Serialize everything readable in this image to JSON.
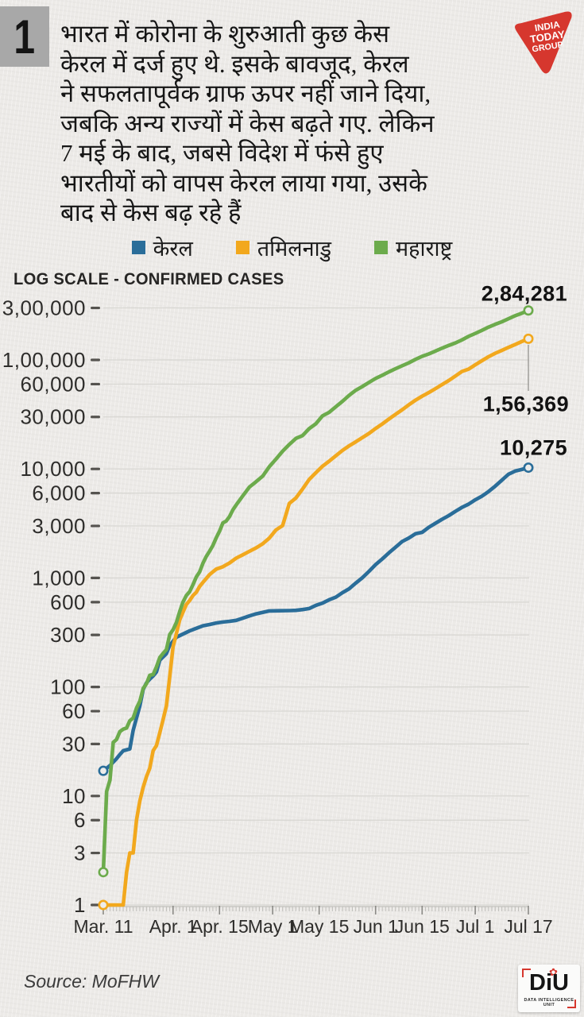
{
  "panel": {
    "number": "1"
  },
  "intro": {
    "lines": [
      "भारत में कोरोना के शुरुआती कुछ केस",
      "केरल में दर्ज हुए थे. इसके बावजूद, केरल",
      "ने सफलतापूर्वक ग्राफ ऊपर नहीं जाने दिया,",
      "जबकि अन्य राज्यों में केस बढ़ते गए. लेकिन",
      "7 मई के बाद, जबसे विदेश में फंसे हुए",
      "भारतीयों को वापस केरल लाया गया, उसके",
      "बाद से केस बढ़ रहे हैं"
    ]
  },
  "brand": {
    "logo_color": "#d6372e",
    "logo_line1": "INDIA",
    "logo_line2": "TODAY",
    "logo_line3": "GROUP"
  },
  "legend": {
    "items": [
      {
        "label": "केरल",
        "color": "#2a6d99"
      },
      {
        "label": "तमिलनाडु",
        "color": "#f2a81d"
      },
      {
        "label": "महाराष्ट्र",
        "color": "#6cab4c"
      }
    ]
  },
  "chart_data": {
    "type": "line",
    "title": "LOG SCALE - CONFIRMED CASES",
    "y_scale": "log",
    "ylim": [
      1,
      300000
    ],
    "grid": true,
    "legend_position": "top",
    "y_ticks": [
      {
        "value": 300000,
        "label": "3,00,000"
      },
      {
        "value": 100000,
        "label": "1,00,000"
      },
      {
        "value": 60000,
        "label": "60,000"
      },
      {
        "value": 30000,
        "label": "30,000"
      },
      {
        "value": 10000,
        "label": "10,000"
      },
      {
        "value": 6000,
        "label": "6,000"
      },
      {
        "value": 3000,
        "label": "3,000"
      },
      {
        "value": 1000,
        "label": "1,000"
      },
      {
        "value": 600,
        "label": "600"
      },
      {
        "value": 300,
        "label": "300"
      },
      {
        "value": 100,
        "label": "100"
      },
      {
        "value": 60,
        "label": "60"
      },
      {
        "value": 30,
        "label": "30"
      },
      {
        "value": 10,
        "label": "10"
      },
      {
        "value": 6,
        "label": "6"
      },
      {
        "value": 3,
        "label": "3"
      },
      {
        "value": 1,
        "label": "1"
      }
    ],
    "x_ticks": [
      {
        "day": 0,
        "label": "Mar. 11"
      },
      {
        "day": 21,
        "label": "Apr. 1"
      },
      {
        "day": 35,
        "label": "Apr. 15"
      },
      {
        "day": 51,
        "label": "May 1"
      },
      {
        "day": 65,
        "label": "May 15"
      },
      {
        "day": 82,
        "label": "Jun 1"
      },
      {
        "day": 96,
        "label": "Jun 15"
      },
      {
        "day": 112,
        "label": "Jul 1"
      },
      {
        "day": 128,
        "label": "Jul 17"
      }
    ],
    "series": [
      {
        "name": "केरल",
        "color": "#2a6d99",
        "end_label": "10,275",
        "points": [
          [
            0,
            17
          ],
          [
            2,
            19
          ],
          [
            4,
            22
          ],
          [
            5,
            24
          ],
          [
            6,
            26
          ],
          [
            8,
            27
          ],
          [
            9,
            40
          ],
          [
            10,
            52
          ],
          [
            11,
            67
          ],
          [
            12,
            95
          ],
          [
            13,
            109
          ],
          [
            14,
            118
          ],
          [
            15,
            126
          ],
          [
            16,
            137
          ],
          [
            17,
            176
          ],
          [
            19,
            202
          ],
          [
            20,
            241
          ],
          [
            22,
            286
          ],
          [
            24,
            306
          ],
          [
            26,
            327
          ],
          [
            28,
            345
          ],
          [
            30,
            364
          ],
          [
            32,
            374
          ],
          [
            34,
            386
          ],
          [
            36,
            394
          ],
          [
            38,
            400
          ],
          [
            40,
            408
          ],
          [
            42,
            427
          ],
          [
            44,
            448
          ],
          [
            46,
            468
          ],
          [
            48,
            483
          ],
          [
            50,
            498
          ],
          [
            53,
            500
          ],
          [
            56,
            502
          ],
          [
            58,
            504
          ],
          [
            60,
            513
          ],
          [
            62,
            524
          ],
          [
            64,
            560
          ],
          [
            66,
            587
          ],
          [
            68,
            630
          ],
          [
            70,
            666
          ],
          [
            72,
            732
          ],
          [
            74,
            794
          ],
          [
            76,
            896
          ],
          [
            78,
            1004
          ],
          [
            80,
            1150
          ],
          [
            82,
            1326
          ],
          [
            84,
            1494
          ],
          [
            86,
            1699
          ],
          [
            88,
            1914
          ],
          [
            90,
            2161
          ],
          [
            92,
            2322
          ],
          [
            94,
            2543
          ],
          [
            96,
            2622
          ],
          [
            98,
            2912
          ],
          [
            100,
            3172
          ],
          [
            102,
            3451
          ],
          [
            104,
            3726
          ],
          [
            106,
            4071
          ],
          [
            108,
            4442
          ],
          [
            110,
            4753
          ],
          [
            112,
            5204
          ],
          [
            114,
            5622
          ],
          [
            116,
            6195
          ],
          [
            118,
            6950
          ],
          [
            120,
            7873
          ],
          [
            122,
            8930
          ],
          [
            124,
            9553
          ],
          [
            126,
            9886
          ],
          [
            128,
            10275
          ]
        ]
      },
      {
        "name": "तमिलनाडु",
        "color": "#f2a81d",
        "end_label": "1,56,369",
        "points": [
          [
            0,
            1
          ],
          [
            6,
            1
          ],
          [
            7,
            2
          ],
          [
            8,
            3
          ],
          [
            9,
            3
          ],
          [
            10,
            6
          ],
          [
            11,
            9
          ],
          [
            12,
            12
          ],
          [
            13,
            15
          ],
          [
            14,
            18
          ],
          [
            15,
            26
          ],
          [
            16,
            29
          ],
          [
            17,
            38
          ],
          [
            18,
            50
          ],
          [
            19,
            67
          ],
          [
            20,
            124
          ],
          [
            21,
            234
          ],
          [
            22,
            309
          ],
          [
            23,
            411
          ],
          [
            24,
            485
          ],
          [
            25,
            571
          ],
          [
            26,
            621
          ],
          [
            27,
            690
          ],
          [
            28,
            738
          ],
          [
            29,
            834
          ],
          [
            30,
            911
          ],
          [
            32,
            1075
          ],
          [
            34,
            1204
          ],
          [
            36,
            1267
          ],
          [
            38,
            1372
          ],
          [
            40,
            1520
          ],
          [
            42,
            1629
          ],
          [
            44,
            1755
          ],
          [
            46,
            1885
          ],
          [
            48,
            2058
          ],
          [
            50,
            2323
          ],
          [
            52,
            2757
          ],
          [
            54,
            3023
          ],
          [
            56,
            4829
          ],
          [
            58,
            5409
          ],
          [
            60,
            6535
          ],
          [
            62,
            8002
          ],
          [
            64,
            9227
          ],
          [
            66,
            10585
          ],
          [
            68,
            11760
          ],
          [
            70,
            13191
          ],
          [
            72,
            14753
          ],
          [
            74,
            16277
          ],
          [
            76,
            17728
          ],
          [
            78,
            19372
          ],
          [
            80,
            21184
          ],
          [
            82,
            23495
          ],
          [
            84,
            25872
          ],
          [
            86,
            28694
          ],
          [
            88,
            31667
          ],
          [
            90,
            34914
          ],
          [
            92,
            38716
          ],
          [
            94,
            42687
          ],
          [
            96,
            46504
          ],
          [
            98,
            50193
          ],
          [
            100,
            54449
          ],
          [
            102,
            59377
          ],
          [
            104,
            64603
          ],
          [
            106,
            70977
          ],
          [
            108,
            78335
          ],
          [
            110,
            82275
          ],
          [
            112,
            90167
          ],
          [
            114,
            98392
          ],
          [
            116,
            107001
          ],
          [
            118,
            114978
          ],
          [
            120,
            122350
          ],
          [
            122,
            130261
          ],
          [
            124,
            138470
          ],
          [
            126,
            147324
          ],
          [
            128,
            156369
          ]
        ]
      },
      {
        "name": "महाराष्ट्र",
        "color": "#6cab4c",
        "end_label": "2,84,281",
        "points": [
          [
            0,
            2
          ],
          [
            1,
            11
          ],
          [
            2,
            14
          ],
          [
            3,
            31
          ],
          [
            4,
            33
          ],
          [
            5,
            39
          ],
          [
            6,
            41
          ],
          [
            7,
            42
          ],
          [
            8,
            49
          ],
          [
            9,
            52
          ],
          [
            10,
            64
          ],
          [
            11,
            74
          ],
          [
            12,
            97
          ],
          [
            13,
            107
          ],
          [
            14,
            128
          ],
          [
            15,
            130
          ],
          [
            16,
            153
          ],
          [
            17,
            186
          ],
          [
            18,
            203
          ],
          [
            19,
            220
          ],
          [
            20,
            302
          ],
          [
            21,
            335
          ],
          [
            22,
            390
          ],
          [
            23,
            490
          ],
          [
            24,
            600
          ],
          [
            25,
            690
          ],
          [
            26,
            748
          ],
          [
            27,
            868
          ],
          [
            28,
            1018
          ],
          [
            29,
            1135
          ],
          [
            30,
            1364
          ],
          [
            31,
            1574
          ],
          [
            32,
            1761
          ],
          [
            33,
            1982
          ],
          [
            34,
            2334
          ],
          [
            35,
            2684
          ],
          [
            36,
            3202
          ],
          [
            37,
            3320
          ],
          [
            38,
            3648
          ],
          [
            39,
            4200
          ],
          [
            40,
            4666
          ],
          [
            42,
            5649
          ],
          [
            44,
            6817
          ],
          [
            46,
            7628
          ],
          [
            48,
            8590
          ],
          [
            50,
            10498
          ],
          [
            52,
            12296
          ],
          [
            54,
            14541
          ],
          [
            56,
            16758
          ],
          [
            58,
            19063
          ],
          [
            60,
            20228
          ],
          [
            62,
            23401
          ],
          [
            64,
            25922
          ],
          [
            66,
            30706
          ],
          [
            68,
            33053
          ],
          [
            70,
            37136
          ],
          [
            72,
            41642
          ],
          [
            74,
            47190
          ],
          [
            76,
            52667
          ],
          [
            78,
            56948
          ],
          [
            80,
            62228
          ],
          [
            82,
            67655
          ],
          [
            84,
            72300
          ],
          [
            86,
            77793
          ],
          [
            88,
            82968
          ],
          [
            90,
            88528
          ],
          [
            92,
            94041
          ],
          [
            94,
            101141
          ],
          [
            96,
            107958
          ],
          [
            98,
            113445
          ],
          [
            100,
            120504
          ],
          [
            102,
            128205
          ],
          [
            104,
            135796
          ],
          [
            106,
            142900
          ],
          [
            108,
            152765
          ],
          [
            110,
            164626
          ],
          [
            112,
            174761
          ],
          [
            114,
            186626
          ],
          [
            116,
            200064
          ],
          [
            118,
            211987
          ],
          [
            120,
            223724
          ],
          [
            122,
            238461
          ],
          [
            124,
            254427
          ],
          [
            126,
            267665
          ],
          [
            128,
            284281
          ]
        ]
      }
    ]
  },
  "footer": {
    "source": "Source: MoFHW",
    "diu_word": "DiU",
    "diu_caption": "DATA INTELLIGENCE UNIT"
  }
}
